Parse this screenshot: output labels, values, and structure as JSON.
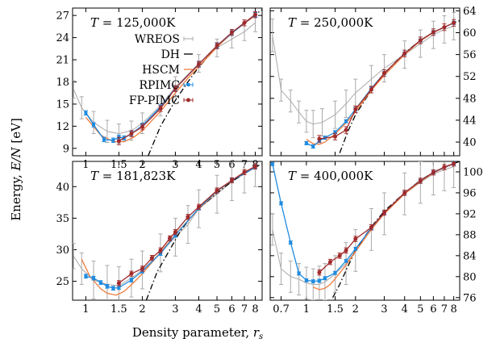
{
  "figure": {
    "ylabel": "Energy, E/N [eV]",
    "xlabel": "Density parameter, r_s"
  },
  "legend": {
    "entries": [
      {
        "label": "WREOS",
        "color": "#aaaaaa",
        "style": "errorbar"
      },
      {
        "label": "DH",
        "color": "#000000",
        "style": "dashed"
      },
      {
        "label": "HSCM",
        "color": "#f07b3c",
        "style": "line"
      },
      {
        "label": "RPIMC",
        "color": "#1f8be0",
        "style": "errorbar-marker"
      },
      {
        "label": "FP-PIMC",
        "color": "#a12a2a",
        "style": "errorbar-marker"
      }
    ]
  },
  "colors": {
    "wreos": "#aaaaaa",
    "dh": "#000000",
    "hscm": "#f07b3c",
    "rpimc": "#1f8be0",
    "fppimc": "#a12a2a"
  },
  "chart_data": [
    {
      "type": "line",
      "title": "T = 125,000K",
      "xscale": "log",
      "xlim": [
        0.85,
        8.7
      ],
      "ylim": [
        8,
        28
      ],
      "xticks": [
        1,
        1.5,
        2,
        3,
        4,
        5,
        6,
        7,
        8
      ],
      "yticks": [
        9,
        12,
        15,
        18,
        21,
        24,
        27
      ],
      "yaxis_side": "left",
      "show_xticklabels": true,
      "series": [
        {
          "name": "WREOS",
          "x": [
            0.86,
            0.95,
            1.1,
            1.3,
            1.5,
            1.75,
            2.0,
            2.5,
            3.0,
            4.0,
            5.0,
            6.0,
            7.0,
            8.0
          ],
          "y": [
            17.0,
            14.5,
            12.5,
            11.3,
            11.0,
            11.4,
            12.4,
            14.8,
            17.3,
            20.5,
            22.6,
            23.8,
            24.8,
            26.0
          ],
          "err": [
            1.2,
            1.5,
            1.5,
            1.5,
            1.3,
            1.3,
            1.4,
            1.4,
            1.4,
            1.2,
            1.2,
            1.2,
            1.2,
            1.2
          ]
        },
        {
          "name": "DH",
          "x": [
            2.15,
            2.5,
            3.0,
            3.5,
            4.0,
            5.0,
            6.0,
            7.0,
            8.0,
            8.7
          ],
          "y": [
            8.0,
            12.0,
            15.5,
            18.0,
            20.0,
            22.8,
            24.6,
            26.0,
            27.1,
            27.8
          ]
        },
        {
          "name": "HSCM",
          "x": [
            1.0,
            1.2,
            1.4,
            1.6,
            1.8,
            2.0,
            2.5,
            3.0,
            3.5,
            4.0,
            5.0,
            6.0,
            7.0,
            8.0
          ],
          "y": [
            13.2,
            10.8,
            9.9,
            9.9,
            10.5,
            11.4,
            14.0,
            16.5,
            18.5,
            20.1,
            22.7,
            24.6,
            25.9,
            27.0
          ]
        },
        {
          "name": "RPIMC",
          "x": [
            1.0,
            1.1,
            1.25,
            1.4,
            1.5,
            1.6,
            1.75,
            2.0,
            2.5,
            3.0,
            4.0,
            5.0,
            6.0,
            8.0
          ],
          "y": [
            13.8,
            12.2,
            10.2,
            10.1,
            10.5,
            10.4,
            11.0,
            12.1,
            14.6,
            17.1,
            20.4,
            22.9,
            24.6,
            27.1
          ],
          "err": [
            0.3,
            0.3,
            0.3,
            0.3,
            0.3,
            0.3,
            0.3,
            0.3,
            0.3,
            0.3,
            0.3,
            0.3,
            0.3,
            0.3
          ]
        },
        {
          "name": "FP-PIMC",
          "x": [
            1.5,
            1.75,
            2.0,
            2.5,
            3.0,
            4.0,
            5.0,
            6.0,
            7.0,
            8.0
          ],
          "y": [
            10.0,
            11.0,
            11.9,
            14.4,
            17.1,
            20.4,
            22.9,
            24.7,
            26.0,
            27.1
          ],
          "err": [
            0.5,
            0.4,
            0.4,
            0.4,
            0.4,
            0.4,
            0.4,
            0.4,
            0.4,
            0.4
          ]
        }
      ]
    },
    {
      "type": "line",
      "title": "T = 250,000K",
      "xscale": "log",
      "xlim": [
        0.6,
        8.7
      ],
      "ylim": [
        37.5,
        64.5
      ],
      "xticks": [
        0.7,
        1,
        1.5,
        2,
        3,
        4,
        5,
        6,
        7,
        8
      ],
      "yticks": [
        40,
        44,
        48,
        52,
        56,
        60,
        64
      ],
      "yaxis_side": "right",
      "show_xticklabels": false,
      "series": [
        {
          "name": "WREOS",
          "x": [
            0.62,
            0.7,
            0.8,
            0.9,
            1.0,
            1.1,
            1.25,
            1.5,
            1.75,
            2.0,
            2.5,
            3.0,
            4.0,
            5.0,
            6.0,
            7.0,
            8.0
          ],
          "y": [
            59.5,
            49.5,
            47.5,
            45.5,
            43.8,
            43.3,
            43.6,
            45.0,
            47.0,
            49.0,
            51.5,
            53.5,
            56.0,
            58.0,
            59.6,
            60.6,
            61.2
          ],
          "err": [
            3.0,
            2.0,
            2.0,
            2.0,
            2.0,
            2.5,
            2.5,
            2.5,
            2.5,
            2.5,
            2.5,
            2.5,
            2.5,
            2.5,
            2.5,
            2.5,
            2.5
          ]
        },
        {
          "name": "DH",
          "x": [
            1.6,
            1.8,
            2.0,
            2.5,
            3.0,
            4.0,
            5.0,
            6.0,
            7.0,
            8.0,
            8.7
          ],
          "y": [
            38.0,
            42.0,
            45.0,
            49.5,
            52.5,
            56.3,
            58.6,
            60.0,
            61.0,
            61.8,
            62.2
          ]
        },
        {
          "name": "HSCM",
          "x": [
            1.0,
            1.1,
            1.2,
            1.3,
            1.5,
            1.75,
            2.0,
            2.5,
            3.0,
            4.0,
            5.0,
            6.0,
            7.0,
            8.0
          ],
          "y": [
            40.5,
            39.7,
            39.6,
            40.0,
            41.5,
            43.5,
            45.5,
            49.5,
            52.2,
            56.0,
            58.5,
            60.0,
            61.0,
            61.8
          ]
        },
        {
          "name": "RPIMC",
          "x": [
            1.0,
            1.1,
            1.2,
            1.3,
            1.5,
            1.75,
            2.0,
            2.5,
            3.0,
            4.0,
            5.0,
            6.0,
            8.0
          ],
          "y": [
            39.8,
            39.2,
            40.2,
            40.8,
            41.8,
            43.8,
            46.0,
            49.8,
            52.6,
            56.2,
            58.6,
            60.1,
            61.8
          ],
          "err": [
            0.3,
            0.3,
            0.3,
            0.3,
            0.3,
            0.3,
            0.3,
            0.3,
            0.3,
            0.3,
            0.3,
            0.3,
            0.3
          ]
        },
        {
          "name": "FP-PIMC",
          "x": [
            1.2,
            1.5,
            1.75,
            2.0,
            2.5,
            3.0,
            4.0,
            5.0,
            6.0,
            7.0,
            8.0
          ],
          "y": [
            40.6,
            41.0,
            42.2,
            46.0,
            49.6,
            52.6,
            56.2,
            58.6,
            60.1,
            61.0,
            61.8
          ],
          "err": [
            0.6,
            0.6,
            0.6,
            0.6,
            0.6,
            0.6,
            0.6,
            0.6,
            0.6,
            0.6,
            0.6
          ]
        }
      ]
    },
    {
      "type": "line",
      "title": "T = 181,823K",
      "xscale": "log",
      "xlim": [
        0.85,
        8.7
      ],
      "ylim": [
        22,
        44
      ],
      "xticks": [
        1,
        1.5,
        2,
        3,
        4,
        5,
        6,
        7,
        8
      ],
      "yticks": [
        25,
        30,
        35,
        40
      ],
      "yaxis_side": "left",
      "show_xticklabels": true,
      "series": [
        {
          "name": "WREOS",
          "x": [
            0.86,
            0.95,
            1.1,
            1.3,
            1.5,
            1.75,
            2.0,
            2.5,
            3.0,
            3.5,
            4.0,
            5.0,
            6.0,
            7.0,
            8.0
          ],
          "y": [
            29.0,
            27.0,
            25.2,
            24.5,
            24.3,
            25.5,
            26.8,
            29.5,
            32.0,
            34.0,
            36.5,
            38.8,
            40.8,
            42.0,
            43.0
          ],
          "err": [
            2.0,
            2.5,
            3.0,
            3.0,
            3.0,
            3.0,
            3.0,
            3.0,
            3.0,
            3.0,
            3.0,
            3.0,
            3.0,
            3.0,
            3.0
          ]
        },
        {
          "name": "DH",
          "x": [
            2.1,
            2.4,
            2.8,
            3.2,
            3.6,
            4.0,
            5.0,
            6.0,
            7.0,
            8.0,
            8.7
          ],
          "y": [
            22.0,
            26.5,
            30.0,
            33.0,
            35.0,
            36.5,
            39.0,
            40.8,
            42.1,
            43.1,
            43.6
          ]
        },
        {
          "name": "HSCM",
          "x": [
            0.95,
            1.05,
            1.2,
            1.3,
            1.45,
            1.6,
            1.8,
            2.0,
            2.5,
            3.0,
            4.0,
            5.0,
            6.0,
            7.0,
            8.0
          ],
          "y": [
            28.5,
            25.8,
            23.8,
            23.1,
            22.8,
            23.4,
            24.8,
            26.2,
            29.6,
            32.4,
            36.5,
            39.2,
            41.0,
            42.3,
            43.2
          ]
        },
        {
          "name": "RPIMC",
          "x": [
            1.0,
            1.1,
            1.2,
            1.3,
            1.4,
            1.5,
            1.75,
            2.0,
            2.5,
            3.0,
            4.0,
            5.0,
            6.0,
            8.0
          ],
          "y": [
            25.8,
            25.5,
            24.8,
            24.2,
            23.9,
            24.0,
            25.2,
            26.6,
            29.4,
            32.3,
            36.6,
            39.3,
            41.0,
            43.1
          ],
          "err": [
            0.3,
            0.3,
            0.3,
            0.3,
            0.3,
            0.3,
            0.3,
            0.3,
            0.3,
            0.3,
            0.3,
            0.3,
            0.3,
            0.3
          ]
        },
        {
          "name": "FP-PIMC",
          "x": [
            1.5,
            1.75,
            2.0,
            2.25,
            2.5,
            2.8,
            3.0,
            3.5,
            4.0,
            5.0,
            6.0,
            7.0,
            8.0
          ],
          "y": [
            24.7,
            26.2,
            27.0,
            28.7,
            29.9,
            31.8,
            32.8,
            35.2,
            36.8,
            39.4,
            41.0,
            42.3,
            43.2
          ],
          "err": [
            0.4,
            0.4,
            0.4,
            0.4,
            0.4,
            0.4,
            0.4,
            0.4,
            0.4,
            0.4,
            0.4,
            0.4,
            0.4
          ]
        }
      ]
    },
    {
      "type": "line",
      "title": "T = 400,000K",
      "xscale": "log",
      "xlim": [
        0.6,
        8.7
      ],
      "ylim": [
        75.5,
        102
      ],
      "xticks": [
        0.7,
        1,
        1.5,
        2,
        3,
        4,
        5,
        6,
        7,
        8
      ],
      "yticks": [
        76,
        80,
        84,
        88,
        92,
        96,
        100
      ],
      "yaxis_side": "right",
      "show_xticklabels": true,
      "series": [
        {
          "name": "WREOS",
          "x": [
            0.62,
            0.7,
            0.8,
            0.9,
            1.0,
            1.1,
            1.2,
            1.3,
            1.5,
            1.75,
            2.0,
            2.5,
            3.0,
            4.0,
            5.0,
            6.0,
            7.0,
            8.0
          ],
          "y": [
            89.0,
            81.5,
            80.0,
            79.5,
            78.8,
            78.5,
            78.5,
            79.0,
            80.5,
            82.5,
            85.0,
            89.0,
            92.0,
            95.8,
            98.0,
            99.6,
            100.4,
            101.0
          ],
          "err": [
            3.0,
            3.0,
            3.0,
            3.0,
            3.0,
            3.0,
            3.5,
            3.5,
            3.5,
            4.0,
            4.0,
            4.0,
            4.0,
            4.0,
            4.0,
            4.0,
            4.0,
            4.0
          ]
        },
        {
          "name": "DH",
          "x": [
            1.45,
            1.6,
            1.8,
            2.0,
            2.5,
            3.0,
            4.0,
            5.0,
            6.0,
            7.0,
            8.0,
            8.7
          ],
          "y": [
            76.0,
            78.5,
            82.0,
            85.0,
            89.5,
            92.5,
            96.0,
            98.4,
            99.9,
            100.9,
            101.6,
            102.0
          ]
        },
        {
          "name": "HSCM",
          "x": [
            1.1,
            1.2,
            1.3,
            1.4,
            1.5,
            1.75,
            2.0,
            2.5,
            3.0,
            4.0,
            5.0,
            6.0,
            7.0,
            8.0
          ],
          "y": [
            78.0,
            77.5,
            77.8,
            78.5,
            79.6,
            82.2,
            84.8,
            89.0,
            92.0,
            95.8,
            98.2,
            99.8,
            100.8,
            101.5
          ]
        },
        {
          "name": "RPIMC",
          "x": [
            0.62,
            0.7,
            0.8,
            0.9,
            1.0,
            1.1,
            1.2,
            1.3,
            1.5,
            1.75,
            2.0,
            2.5,
            3.0,
            4.0,
            5.0,
            6.0,
            8.0
          ],
          "y": [
            101.5,
            94.0,
            86.5,
            80.6,
            79.3,
            79.1,
            79.2,
            79.7,
            80.7,
            83.0,
            85.3,
            89.3,
            92.2,
            96.0,
            98.3,
            99.9,
            101.6
          ],
          "err": [
            0.3,
            0.3,
            0.3,
            0.3,
            0.3,
            0.3,
            0.3,
            0.3,
            0.3,
            0.3,
            0.3,
            0.3,
            0.3,
            0.3,
            0.3,
            0.3,
            0.3
          ]
        },
        {
          "name": "FP-PIMC",
          "x": [
            1.2,
            1.4,
            1.6,
            1.75,
            2.0,
            2.5,
            3.0,
            4.0,
            5.0,
            6.0,
            7.0,
            8.0
          ],
          "y": [
            80.8,
            82.8,
            84.0,
            85.0,
            87.2,
            89.4,
            92.2,
            96.0,
            98.3,
            99.9,
            100.9,
            101.6
          ],
          "err": [
            0.5,
            0.5,
            0.5,
            0.5,
            0.5,
            0.5,
            0.5,
            0.5,
            0.5,
            0.5,
            0.5,
            0.5
          ]
        }
      ]
    }
  ]
}
